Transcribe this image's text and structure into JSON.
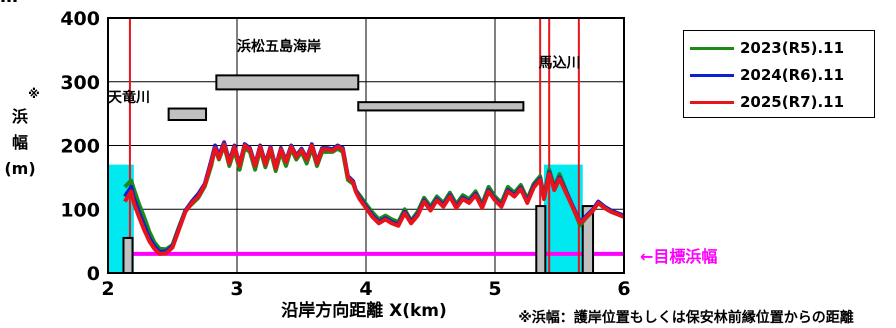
{
  "title": "…",
  "footnote": "※浜幅：護岸位置もしくは保安林前縁位置からの距離",
  "target_label": "←目標浜幅",
  "colors": {
    "r5": "#1a8a1a",
    "r6": "#0b1fd6",
    "r7": "#e8141c",
    "target": "#ff00ff",
    "cyan": "#00e8f0",
    "structure": "#c0c0c0",
    "river": "#e8141c"
  },
  "chart_data": {
    "type": "line",
    "xlabel": "沿岸方向距離 X(km)",
    "ylabel": "浜幅(m)",
    "ylabel_mark": "※",
    "xlim": [
      2,
      6
    ],
    "ylim": [
      0,
      400
    ],
    "xticks": [
      2,
      3,
      4,
      5,
      6
    ],
    "yticks": [
      0,
      100,
      200,
      300,
      400
    ],
    "grid": true,
    "legend_position": "top-right",
    "series": [
      {
        "name": "2023(R5).11",
        "color_key": "r5",
        "x": [
          2.13,
          2.18,
          2.2,
          2.24,
          2.28,
          2.32,
          2.36,
          2.4,
          2.45,
          2.5,
          2.55,
          2.6,
          2.65,
          2.7,
          2.75,
          2.8,
          2.83,
          2.86,
          2.9,
          2.94,
          2.98,
          3.02,
          3.06,
          3.1,
          3.14,
          3.18,
          3.22,
          3.26,
          3.3,
          3.34,
          3.38,
          3.42,
          3.46,
          3.5,
          3.54,
          3.58,
          3.62,
          3.66,
          3.7,
          3.74,
          3.78,
          3.82,
          3.86,
          3.9,
          3.92,
          3.95,
          4.0,
          4.05,
          4.1,
          4.15,
          4.2,
          4.25,
          4.3,
          4.35,
          4.4,
          4.45,
          4.5,
          4.55,
          4.6,
          4.65,
          4.7,
          4.75,
          4.8,
          4.85,
          4.9,
          4.95,
          5.0,
          5.05,
          5.1,
          5.15,
          5.2,
          5.25,
          5.3,
          5.35,
          5.38,
          5.42,
          5.46,
          5.5,
          5.66,
          5.7,
          5.76,
          5.8,
          5.85,
          5.9,
          5.95,
          6.0
        ],
        "values": [
          135,
          145,
          132,
          108,
          88,
          65,
          48,
          38,
          37,
          44,
          72,
          98,
          108,
          118,
          136,
          168,
          196,
          178,
          200,
          168,
          193,
          162,
          196,
          190,
          162,
          194,
          166,
          192,
          160,
          190,
          168,
          195,
          178,
          190,
          172,
          196,
          168,
          190,
          190,
          190,
          195,
          190,
          146,
          140,
          130,
          122,
          108,
          95,
          84,
          90,
          84,
          80,
          100,
          82,
          96,
          118,
          104,
          120,
          110,
          126,
          108,
          122,
          116,
          128,
          108,
          135,
          120,
          110,
          135,
          126,
          138,
          116,
          140,
          152,
          120,
          162,
          135,
          155,
          75,
          85,
          98,
          110,
          102,
          96,
          92,
          88
        ]
      },
      {
        "name": "2024(R6).11",
        "color_key": "r6",
        "x": [
          2.13,
          2.18,
          2.2,
          2.24,
          2.28,
          2.32,
          2.36,
          2.4,
          2.45,
          2.5,
          2.55,
          2.6,
          2.65,
          2.7,
          2.75,
          2.8,
          2.83,
          2.86,
          2.9,
          2.94,
          2.98,
          3.02,
          3.06,
          3.1,
          3.14,
          3.18,
          3.22,
          3.26,
          3.3,
          3.34,
          3.38,
          3.42,
          3.46,
          3.5,
          3.54,
          3.58,
          3.62,
          3.66,
          3.7,
          3.74,
          3.78,
          3.82,
          3.86,
          3.9,
          3.92,
          3.95,
          4.0,
          4.05,
          4.1,
          4.15,
          4.2,
          4.25,
          4.3,
          4.35,
          4.4,
          4.45,
          4.5,
          4.55,
          4.6,
          4.65,
          4.7,
          4.75,
          4.8,
          4.85,
          4.9,
          4.95,
          5.0,
          5.05,
          5.1,
          5.15,
          5.2,
          5.25,
          5.3,
          5.35,
          5.38,
          5.42,
          5.46,
          5.5,
          5.66,
          5.7,
          5.76,
          5.8,
          5.85,
          5.9,
          5.95,
          6.0
        ],
        "values": [
          120,
          135,
          118,
          95,
          75,
          55,
          42,
          33,
          34,
          42,
          70,
          98,
          112,
          124,
          140,
          176,
          200,
          184,
          205,
          175,
          200,
          170,
          202,
          196,
          170,
          200,
          172,
          198,
          166,
          196,
          176,
          200,
          184,
          195,
          180,
          202,
          174,
          196,
          196,
          194,
          200,
          196,
          152,
          144,
          130,
          118,
          104,
          90,
          80,
          86,
          80,
          76,
          96,
          80,
          92,
          114,
          100,
          116,
          106,
          122,
          104,
          118,
          112,
          124,
          104,
          130,
          116,
          106,
          130,
          122,
          134,
          112,
          136,
          148,
          118,
          158,
          132,
          150,
          80,
          88,
          100,
          112,
          104,
          98,
          94,
          90
        ]
      },
      {
        "name": "2025(R7).11",
        "color_key": "r7",
        "x": [
          2.13,
          2.18,
          2.2,
          2.24,
          2.28,
          2.32,
          2.36,
          2.4,
          2.45,
          2.5,
          2.55,
          2.6,
          2.65,
          2.7,
          2.75,
          2.8,
          2.83,
          2.86,
          2.9,
          2.94,
          2.98,
          3.02,
          3.06,
          3.1,
          3.14,
          3.18,
          3.22,
          3.26,
          3.3,
          3.34,
          3.38,
          3.42,
          3.46,
          3.5,
          3.54,
          3.58,
          3.62,
          3.66,
          3.7,
          3.74,
          3.78,
          3.82,
          3.86,
          3.9,
          3.92,
          3.95,
          4.0,
          4.05,
          4.1,
          4.15,
          4.2,
          4.25,
          4.3,
          4.35,
          4.4,
          4.45,
          4.5,
          4.55,
          4.6,
          4.65,
          4.7,
          4.75,
          4.8,
          4.85,
          4.9,
          4.95,
          5.0,
          5.05,
          5.1,
          5.15,
          5.2,
          5.25,
          5.3,
          5.35,
          5.38,
          5.42,
          5.46,
          5.5,
          5.66,
          5.7,
          5.76,
          5.8,
          5.85,
          5.9,
          5.95,
          6.0
        ],
        "values": [
          112,
          128,
          110,
          88,
          68,
          50,
          38,
          30,
          31,
          40,
          68,
          96,
          110,
          120,
          138,
          172,
          196,
          180,
          202,
          172,
          198,
          168,
          200,
          194,
          168,
          198,
          170,
          196,
          164,
          194,
          174,
          198,
          182,
          193,
          178,
          200,
          172,
          194,
          194,
          192,
          198,
          194,
          150,
          142,
          128,
          116,
          102,
          88,
          78,
          84,
          78,
          74,
          94,
          78,
          90,
          112,
          98,
          114,
          104,
          120,
          102,
          116,
          110,
          122,
          102,
          128,
          114,
          104,
          128,
          120,
          132,
          110,
          134,
          146,
          116,
          156,
          130,
          148,
          78,
          86,
          98,
          110,
          102,
          96,
          92,
          88
        ]
      }
    ],
    "target_line": {
      "y": 30,
      "x": [
        2.15,
        6.0
      ]
    },
    "cyan_zones": [
      {
        "x": [
          2.0,
          2.2
        ],
        "y": [
          0,
          170
        ]
      },
      {
        "x": [
          5.38,
          5.68
        ],
        "y": [
          0,
          170
        ]
      }
    ],
    "river_lines": [
      {
        "label": "天竜川",
        "x": 2.17
      },
      {
        "label": "",
        "x": 5.35
      },
      {
        "label": "馬込川",
        "x": 5.42
      },
      {
        "label": "",
        "x": 5.65
      }
    ],
    "annotations": [
      {
        "text": "浜松五島海岸",
        "x": 3.0,
        "y": 348
      },
      {
        "text": "天竜川",
        "x": 2.0,
        "y": 268
      },
      {
        "text": "馬込川",
        "x": 5.5,
        "y": 322
      }
    ],
    "structures": [
      {
        "x": [
          2.47,
          2.76
        ],
        "y": [
          240,
          258
        ]
      },
      {
        "x": [
          2.84,
          3.94
        ],
        "y": [
          288,
          310
        ]
      },
      {
        "x": [
          3.94,
          5.22
        ],
        "y": [
          255,
          268
        ]
      },
      {
        "x": [
          2.12,
          2.19
        ],
        "y": [
          0,
          55
        ]
      },
      {
        "x": [
          5.32,
          5.39
        ],
        "y": [
          0,
          105
        ]
      },
      {
        "x": [
          5.68,
          5.76
        ],
        "y": [
          0,
          105
        ]
      }
    ]
  },
  "legend": [
    {
      "label": "2023(R5).11",
      "color_key": "r5"
    },
    {
      "label": "2024(R6).11",
      "color_key": "r6"
    },
    {
      "label": "2025(R7).11",
      "color_key": "r7"
    }
  ]
}
